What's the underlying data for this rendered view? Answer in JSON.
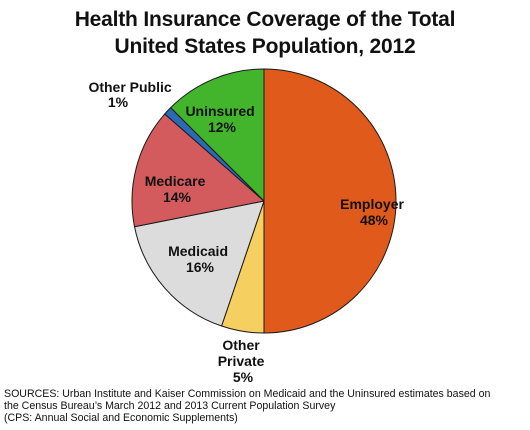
{
  "chart_data": {
    "type": "pie",
    "title": [
      "Health Insurance Coverage of the Total",
      "United States Population, 2012"
    ],
    "slices": [
      {
        "label": "Employer",
        "value": 48,
        "value_label": "48%",
        "color": "#e05a1b"
      },
      {
        "label": "Other Private",
        "value": 5,
        "value_label": "5%",
        "color": "#f5cf5f"
      },
      {
        "label": "Medicaid",
        "value": 16,
        "value_label": "16%",
        "color": "#dcdcdc"
      },
      {
        "label": "Medicare",
        "value": 14,
        "value_label": "14%",
        "color": "#d35b5e"
      },
      {
        "label": "Other Public",
        "value": 1,
        "value_label": "1%",
        "color": "#2a6bb5"
      },
      {
        "label": "Uninsured",
        "value": 12,
        "value_label": "12%",
        "color": "#42b52c"
      }
    ],
    "start_angle_deg": 0,
    "direction": "clockwise"
  },
  "labels": {
    "employer": [
      "Employer",
      "48%"
    ],
    "other_private": [
      "Other",
      "Private",
      "5%"
    ],
    "medicaid": [
      "Medicaid",
      "16%"
    ],
    "medicare": [
      "Medicare",
      "14%"
    ],
    "other_public": [
      "Other Public",
      "1%"
    ],
    "uninsured": [
      "Uninsured",
      "12%"
    ]
  },
  "sources": [
    "SOURCES: Urban Institute and Kaiser Commission on Medicaid and the Uninsured estimates based on",
    "the Census Bureau’s March 2012 and 2013 Current Population Survey",
    "(CPS: Annual Social and Economic Supplements)"
  ]
}
